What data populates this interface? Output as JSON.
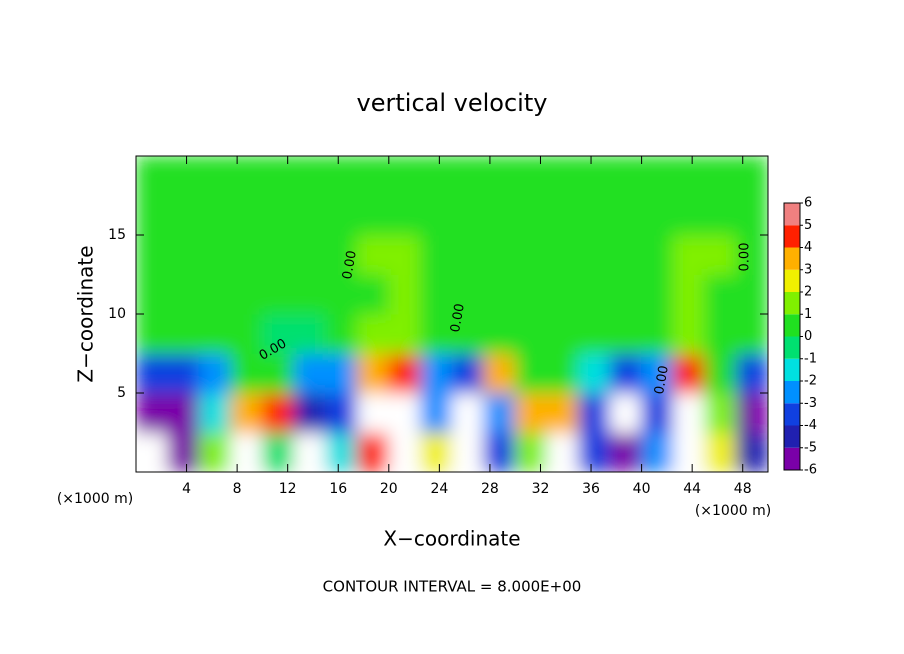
{
  "chart_data": {
    "type": "heatmap",
    "title": "vertical velocity",
    "xlabel": "X−coordinate",
    "ylabel": "Z−coordinate",
    "x_unit_label": "(×1000 m)",
    "y_unit_label": "(×1000 m)",
    "footer": "CONTOUR INTERVAL = 8.000E+00",
    "contour_labels": [
      "0.00",
      "0.00",
      "0.00",
      "0.00",
      "0.00"
    ],
    "xlim": [
      0,
      50
    ],
    "xticks": [
      4,
      8,
      12,
      16,
      20,
      24,
      28,
      32,
      36,
      40,
      44,
      48
    ],
    "ylim": [
      0,
      20
    ],
    "yticks": [
      5,
      10,
      15
    ],
    "x": [
      1.25,
      3.75,
      6.25,
      8.75,
      11.25,
      13.75,
      16.25,
      18.75,
      21.25,
      23.75,
      26.25,
      28.75,
      31.25,
      33.75,
      36.25,
      38.75,
      41.25,
      43.75,
      46.25,
      48.75
    ],
    "y": [
      1.25,
      3.75,
      6.25,
      8.75,
      11.25,
      13.75,
      16.25,
      18.75
    ],
    "z": [
      [
        -7,
        -5,
        2,
        8,
        0,
        -7,
        -1,
        5,
        8,
        3,
        -7,
        -3,
        2,
        8,
        -3,
        -5,
        -2,
        8,
        3,
        -4
      ],
      [
        -5,
        -5,
        -1,
        4,
        5,
        -4,
        -3,
        7,
        8,
        -2,
        -7,
        -2,
        4,
        4,
        -3,
        -7,
        -3,
        8,
        2,
        -5
      ],
      [
        -3,
        -3,
        -2,
        0.5,
        1,
        -2,
        -2,
        4,
        5,
        -2,
        -3,
        4,
        1,
        0.5,
        -1,
        -3,
        -2,
        5,
        1,
        -3
      ],
      [
        0.5,
        0.5,
        0.5,
        0.5,
        0,
        0,
        0.5,
        1.5,
        2,
        0.5,
        0.5,
        0.5,
        0.5,
        0.5,
        0.5,
        0.5,
        0.5,
        2,
        1,
        0.5
      ],
      [
        0.5,
        0.5,
        0.5,
        0.5,
        1,
        1,
        1,
        1,
        1.5,
        1,
        0.5,
        0.5,
        0.5,
        0.5,
        0.5,
        0.5,
        1,
        1.5,
        1,
        0.5
      ],
      [
        0.5,
        0.5,
        0.5,
        0.5,
        1,
        1,
        1,
        1.5,
        1.5,
        1,
        0.5,
        0.5,
        0.5,
        0.5,
        0.5,
        1,
        1,
        1.5,
        1.5,
        0.5
      ],
      [
        0.5,
        0.5,
        0.5,
        0.5,
        0.5,
        0.5,
        0.5,
        1,
        1,
        0.5,
        0.5,
        0.5,
        0.5,
        0.5,
        0.5,
        0.5,
        0.5,
        1,
        1,
        0.5
      ],
      [
        0.5,
        0.5,
        0.5,
        0.5,
        0.5,
        0.5,
        0.5,
        0.5,
        0.5,
        0.5,
        0.5,
        0.5,
        0.5,
        0.5,
        0.5,
        0.5,
        0.5,
        0.5,
        0.5,
        0.5
      ]
    ],
    "colorbar_ticks": [
      -6,
      -5,
      -4,
      -3,
      -2,
      -1,
      0,
      1,
      2,
      3,
      4,
      5,
      6
    ],
    "colors": [
      "#7a00a8",
      "#2020b0",
      "#1040e0",
      "#0090ff",
      "#00e0e0",
      "#00e070",
      "#20e020",
      "#80f000",
      "#f0f000",
      "#ffb000",
      "#ff2000",
      "#f08080"
    ],
    "out_of_range_color": "#ffffff"
  }
}
